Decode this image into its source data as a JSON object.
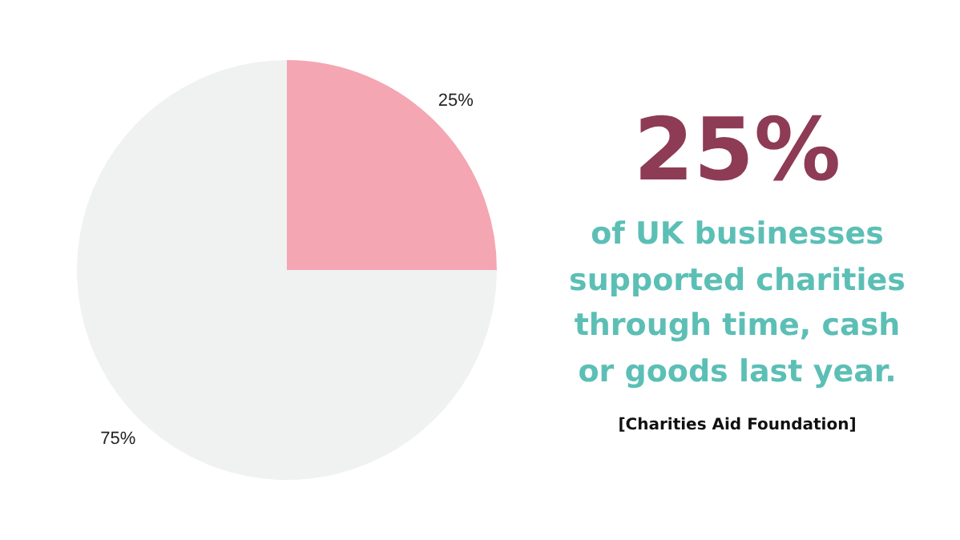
{
  "chart_data": {
    "type": "pie",
    "categories": [
      null,
      null
    ],
    "values": [
      25,
      75
    ],
    "colors": [
      "#f4a6b2",
      "#f0f1f1"
    ],
    "value_labels": [
      "25%",
      "75%"
    ],
    "legend": false,
    "annotations": [
      "25%",
      "of UK businesses supported charities through time, cash or goods last year.",
      "[Charities Aid Foundation]"
    ]
  }
}
